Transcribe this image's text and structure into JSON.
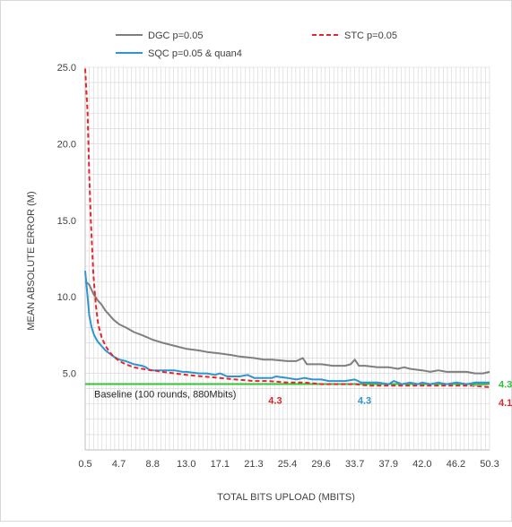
{
  "chart_data": {
    "type": "line",
    "title": "",
    "xlabel": "TOTAL BITS UPLOAD (MBITS)",
    "ylabel": "MEAN ABSOLUTE ERROR (M)",
    "xlim": [
      0.5,
      50.3
    ],
    "ylim": [
      0,
      25
    ],
    "x_tick_labels": [
      "0.5",
      "4.7",
      "8.8",
      "13.0",
      "17.1",
      "21.3",
      "25.4",
      "29.6",
      "33.7",
      "37.9",
      "42.0",
      "46.2",
      "50.3"
    ],
    "y_tick_labels": [
      "5.0",
      "10.0",
      "15.0",
      "20.0",
      "25.0"
    ],
    "y_ticks": [
      5,
      10,
      15,
      20,
      25
    ],
    "grid": true,
    "legend_position": "top",
    "series": [
      {
        "name": "DGC p=0.05",
        "color": "#7f7f7f",
        "dash": "solid",
        "points": [
          [
            0.5,
            11.0
          ],
          [
            1.0,
            10.8
          ],
          [
            1.5,
            10.2
          ],
          [
            2.0,
            9.8
          ],
          [
            2.5,
            9.5
          ],
          [
            3.0,
            9.1
          ],
          [
            3.5,
            8.8
          ],
          [
            4.0,
            8.5
          ],
          [
            4.7,
            8.2
          ],
          [
            5.5,
            8.0
          ],
          [
            6.5,
            7.7
          ],
          [
            7.5,
            7.5
          ],
          [
            8.8,
            7.2
          ],
          [
            10.0,
            7.0
          ],
          [
            11.5,
            6.8
          ],
          [
            13.0,
            6.6
          ],
          [
            14.5,
            6.5
          ],
          [
            15.5,
            6.4
          ],
          [
            17.1,
            6.3
          ],
          [
            18.5,
            6.2
          ],
          [
            19.5,
            6.1
          ],
          [
            21.3,
            6.0
          ],
          [
            22.5,
            5.9
          ],
          [
            23.5,
            5.9
          ],
          [
            25.4,
            5.8
          ],
          [
            26.5,
            5.8
          ],
          [
            27.3,
            6.0
          ],
          [
            27.8,
            5.6
          ],
          [
            28.5,
            5.6
          ],
          [
            29.6,
            5.6
          ],
          [
            31.0,
            5.5
          ],
          [
            32.5,
            5.5
          ],
          [
            33.2,
            5.6
          ],
          [
            33.7,
            5.9
          ],
          [
            34.2,
            5.5
          ],
          [
            35.0,
            5.5
          ],
          [
            36.5,
            5.4
          ],
          [
            37.9,
            5.4
          ],
          [
            39.0,
            5.3
          ],
          [
            39.8,
            5.4
          ],
          [
            40.5,
            5.3
          ],
          [
            42.0,
            5.2
          ],
          [
            43.0,
            5.1
          ],
          [
            44.0,
            5.2
          ],
          [
            45.0,
            5.1
          ],
          [
            46.2,
            5.1
          ],
          [
            47.5,
            5.1
          ],
          [
            48.5,
            5.0
          ],
          [
            49.5,
            5.0
          ],
          [
            50.3,
            5.1
          ]
        ]
      },
      {
        "name": "STC p=0.05",
        "color": "#e8262a",
        "dash": "dashed",
        "points": [
          [
            0.5,
            24.9
          ],
          [
            0.8,
            22.0
          ],
          [
            1.0,
            18.0
          ],
          [
            1.2,
            15.0
          ],
          [
            1.5,
            11.5
          ],
          [
            1.8,
            9.5
          ],
          [
            2.1,
            8.2
          ],
          [
            2.5,
            7.4
          ],
          [
            3.0,
            6.8
          ],
          [
            3.5,
            6.4
          ],
          [
            4.0,
            6.1
          ],
          [
            4.7,
            5.8
          ],
          [
            5.5,
            5.6
          ],
          [
            6.5,
            5.4
          ],
          [
            7.5,
            5.3
          ],
          [
            8.8,
            5.2
          ],
          [
            10.0,
            5.1
          ],
          [
            11.5,
            5.0
          ],
          [
            13.0,
            4.9
          ],
          [
            15.0,
            4.8
          ],
          [
            17.1,
            4.7
          ],
          [
            19.0,
            4.6
          ],
          [
            21.3,
            4.5
          ],
          [
            23.0,
            4.5
          ],
          [
            25.4,
            4.4
          ],
          [
            27.5,
            4.4
          ],
          [
            29.6,
            4.3
          ],
          [
            31.5,
            4.3
          ],
          [
            33.7,
            4.3
          ],
          [
            35.5,
            4.2
          ],
          [
            37.9,
            4.2
          ],
          [
            40.0,
            4.2
          ],
          [
            42.0,
            4.2
          ],
          [
            44.0,
            4.2
          ],
          [
            46.2,
            4.2
          ],
          [
            48.0,
            4.2
          ],
          [
            50.3,
            4.1
          ]
        ]
      },
      {
        "name": "SQC p=0.05 & quan4",
        "color": "#2e95d3",
        "dash": "solid",
        "points": [
          [
            0.5,
            11.7
          ],
          [
            0.8,
            10.0
          ],
          [
            1.0,
            8.8
          ],
          [
            1.3,
            8.0
          ],
          [
            1.6,
            7.5
          ],
          [
            2.0,
            7.1
          ],
          [
            2.5,
            6.8
          ],
          [
            3.0,
            6.5
          ],
          [
            3.5,
            6.3
          ],
          [
            4.0,
            6.1
          ],
          [
            4.7,
            5.9
          ],
          [
            5.5,
            5.8
          ],
          [
            6.5,
            5.6
          ],
          [
            7.5,
            5.5
          ],
          [
            8.0,
            5.4
          ],
          [
            8.5,
            5.2
          ],
          [
            8.8,
            5.2
          ],
          [
            9.5,
            5.2
          ],
          [
            10.5,
            5.2
          ],
          [
            11.5,
            5.2
          ],
          [
            12.5,
            5.1
          ],
          [
            13.0,
            5.1
          ],
          [
            14.5,
            5.0
          ],
          [
            15.5,
            5.0
          ],
          [
            16.5,
            4.9
          ],
          [
            17.1,
            5.0
          ],
          [
            18.0,
            4.8
          ],
          [
            19.5,
            4.8
          ],
          [
            20.5,
            4.9
          ],
          [
            21.3,
            4.7
          ],
          [
            22.5,
            4.7
          ],
          [
            23.5,
            4.7
          ],
          [
            24.0,
            4.8
          ],
          [
            25.4,
            4.7
          ],
          [
            26.5,
            4.6
          ],
          [
            27.5,
            4.7
          ],
          [
            28.5,
            4.6
          ],
          [
            29.6,
            4.6
          ],
          [
            30.5,
            4.5
          ],
          [
            31.5,
            4.5
          ],
          [
            32.5,
            4.5
          ],
          [
            33.7,
            4.6
          ],
          [
            34.5,
            4.4
          ],
          [
            35.5,
            4.4
          ],
          [
            36.5,
            4.4
          ],
          [
            37.9,
            4.3
          ],
          [
            38.5,
            4.5
          ],
          [
            39.5,
            4.3
          ],
          [
            40.5,
            4.4
          ],
          [
            41.5,
            4.3
          ],
          [
            42.0,
            4.4
          ],
          [
            43.0,
            4.3
          ],
          [
            44.0,
            4.4
          ],
          [
            45.0,
            4.3
          ],
          [
            46.2,
            4.4
          ],
          [
            47.5,
            4.3
          ],
          [
            48.5,
            4.4
          ],
          [
            50.3,
            4.4
          ]
        ]
      }
    ],
    "baseline": {
      "label": "Baseline (100 rounds, 880Mbits)",
      "value": 4.3,
      "color": "#35c437"
    },
    "annotations": [
      {
        "text": "4.3",
        "color": "#35c437",
        "x": 50.3,
        "y": 4.3,
        "anchor": "right-of-end"
      },
      {
        "text": "4.1",
        "color": "#d9262c",
        "x": 50.3,
        "y": 4.1,
        "anchor": "below-right"
      },
      {
        "text": "4.3",
        "color": "#d9262c",
        "x": 23.9,
        "y": 4.3,
        "anchor": "below"
      },
      {
        "text": "4.3",
        "color": "#2e95d3",
        "x": 34.9,
        "y": 4.3,
        "anchor": "below"
      }
    ]
  }
}
